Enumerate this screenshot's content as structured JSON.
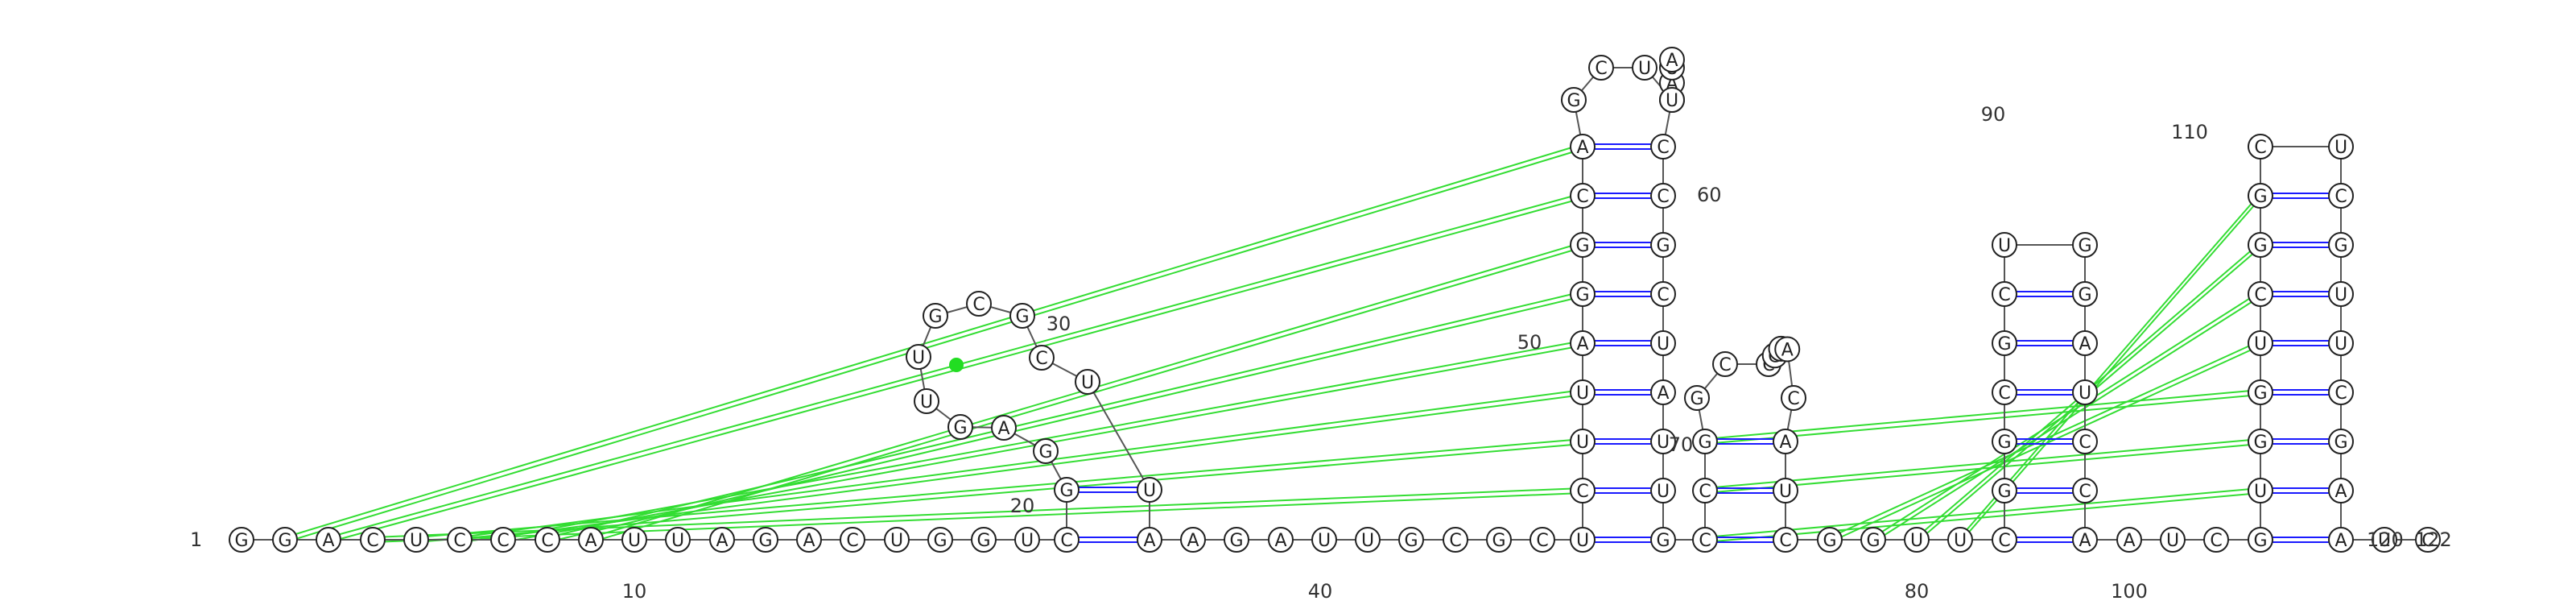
{
  "sequence": "GGACUCCCAUUAGACUGGUCGGAGUUGCGCUUAAGAUUGCGCUCUUAGGCAGCUAAUAUCCGCUAUUGCCGGCCGUACAUCGGUUCGGCGCUGGAUCCAAUCGUGGUCGGCUCGUUCGAAUC",
  "sequence_length": 122,
  "number_labels": [
    "1",
    "10",
    "20",
    "30",
    "40",
    "50",
    "60",
    "70",
    "80",
    "90",
    "100",
    "110",
    "120",
    "122"
  ],
  "colors": {
    "nucleotide_stroke": "#222222",
    "backbone": "#555555",
    "canonical_pair": "#1a1aff",
    "pseudoknot_pair": "#33dd33",
    "marker": "#22dd22"
  }
}
